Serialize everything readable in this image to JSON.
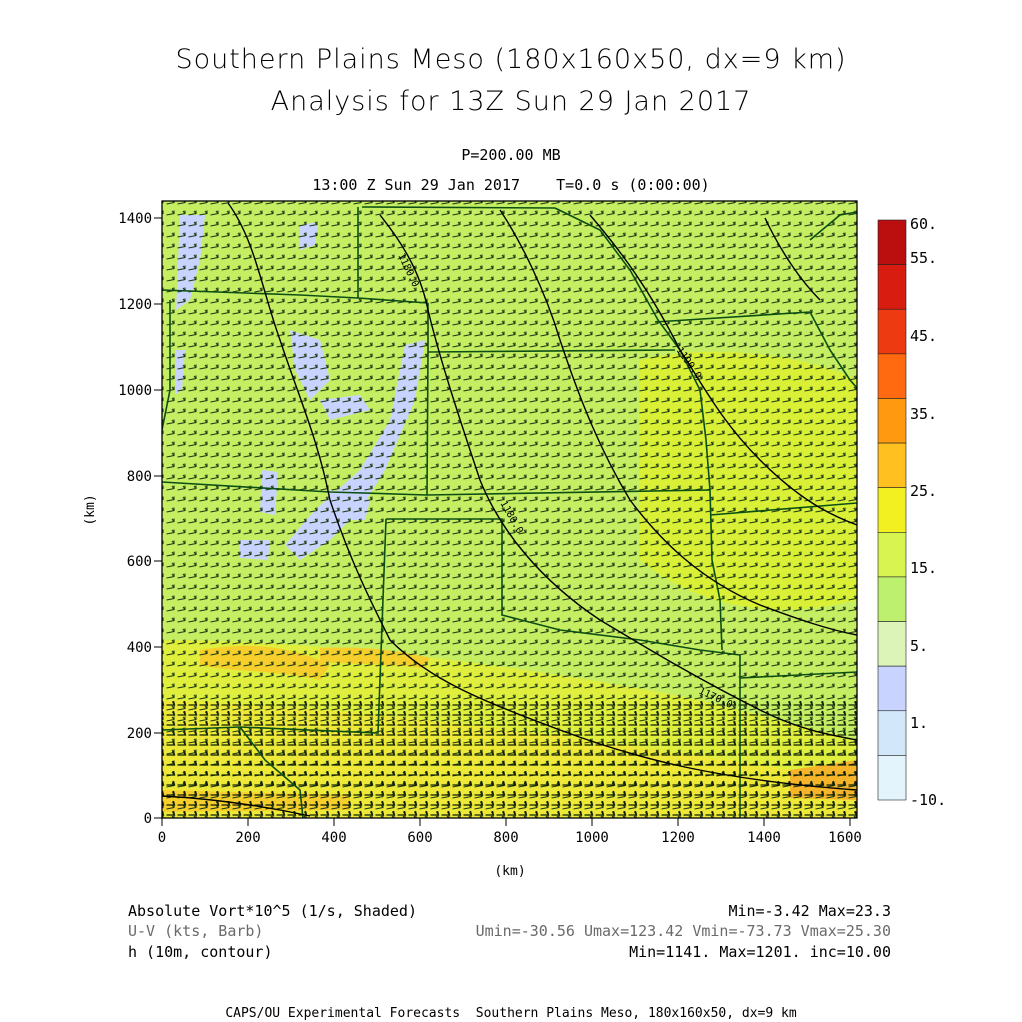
{
  "header": {
    "title_line1": "Southern Plains Meso (180x160x50, dx=9 km)",
    "title_line2": "Analysis for 13Z Sun 29 Jan 2017",
    "level": "P=200.00 MB",
    "valid_time": "13:00 Z Sun 29 Jan 2017    T=0.0 s (0:00:00)"
  },
  "axes": {
    "x_label": "(km)",
    "y_label": "(km)",
    "x_ticks": [
      "0",
      "200",
      "400",
      "600",
      "800",
      "1000",
      "1200",
      "1400",
      "1600"
    ],
    "y_ticks": [
      "0",
      "200",
      "400",
      "600",
      "800",
      "1000",
      "1200",
      "1400"
    ]
  },
  "colorbar": {
    "labels": [
      "60.",
      "55.",
      "45.",
      "35.",
      "25.",
      "15.",
      "5.",
      "1.",
      "-10."
    ],
    "colors": [
      "#bb0f0f",
      "#d81c10",
      "#ee3a10",
      "#ff6a10",
      "#ff9a10",
      "#ffc020",
      "#f2f020",
      "#d8f450",
      "#bef070",
      "#dcf4b8",
      "#c8d4ff",
      "#d2e8fa",
      "#e4f4fc"
    ]
  },
  "contours": {
    "labels": [
      "1180.0",
      "1190.0",
      "1180.0",
      "1170.0",
      "1160.0"
    ]
  },
  "legend": {
    "line1_left": "Absolute Vort*10^5 (1/s, Shaded)",
    "line1_right": "Min=-3.42 Max=23.3",
    "line2_left": "U-V (kts, Barb)",
    "line2_right": "Umin=-30.56 Umax=123.42 Vmin=-73.73 Vmax=25.30",
    "line3_left": "h (10m, contour)",
    "line3_right": "Min=1141. Max=1201. inc=10.00"
  },
  "footer": "CAPS/OU Experimental Forecasts  Southern Plains Meso, 180x160x50, dx=9 km"
}
